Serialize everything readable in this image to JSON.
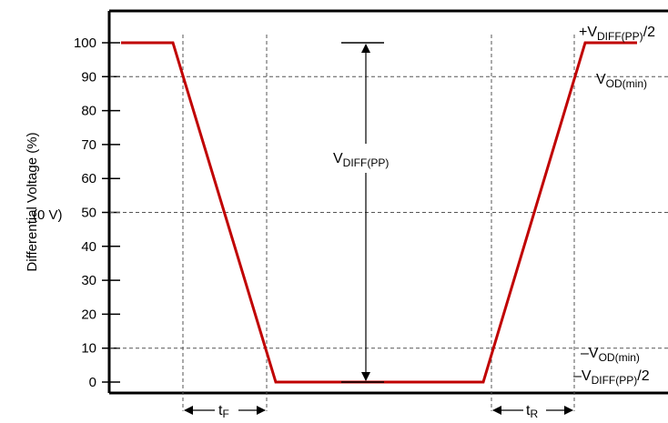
{
  "chart_data": {
    "type": "line",
    "ylabel": "Differential Voltage (%)",
    "ylim": [
      0,
      100
    ],
    "yticks": [
      0,
      10,
      20,
      30,
      40,
      50,
      60,
      70,
      80,
      90,
      100
    ],
    "ytick_labels": [
      "0",
      "10",
      "20",
      "30",
      "40",
      "50",
      "60",
      "70",
      "80",
      "90",
      "100"
    ],
    "zero_volt_label": "(0 V)",
    "series": [
      {
        "color": "#c00000",
        "points": [
          [
            0,
            100
          ],
          [
            1,
            100
          ],
          [
            2.5,
            0
          ],
          [
            6.5,
            0
          ],
          [
            8,
            100
          ],
          [
            9,
            100
          ]
        ]
      }
    ],
    "annotations": {
      "vdiff_main": "V",
      "vdiff_main_sub": "DIFF(PP)",
      "plus_vdiff_prefix": "+V",
      "plus_vdiff_sub": "DIFF(PP)",
      "plus_vdiff_suffix": "/2",
      "vod_min_main": "V",
      "vod_min_sub": "OD(min)",
      "minus_vod_prefix": "–V",
      "minus_vod_sub": "OD(min)",
      "minus_vdiff_prefix": "–V",
      "minus_vdiff_sub": "DIFF(PP)",
      "minus_vdiff_suffix": "/2",
      "tf_main": "t",
      "tf_sub": "F",
      "tr_main": "t",
      "tr_sub": "R"
    },
    "guide_levels": [
      10,
      50,
      90
    ],
    "grid": false,
    "colors": {
      "waveform": "#c00000",
      "axes": "#000000",
      "guides": "#555555"
    }
  }
}
